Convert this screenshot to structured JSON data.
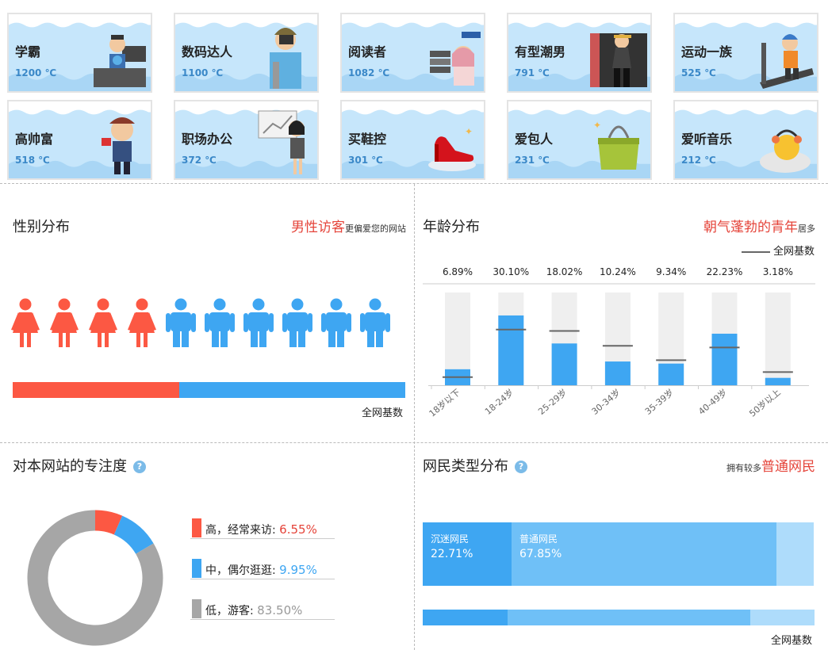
{
  "colors": {
    "female": "#fc5843",
    "male": "#3ea6f2",
    "accent": "#e5443a",
    "mid": "#3ea6f2",
    "low": "#a6a6a6"
  },
  "tags": [
    {
      "name": "学霸",
      "temp": "1200 ℃",
      "icon": "scholar-icon"
    },
    {
      "name": "数码达人",
      "temp": "1100 ℃",
      "icon": "camera-man-icon"
    },
    {
      "name": "阅读者",
      "temp": "1082 ℃",
      "icon": "reader-icon"
    },
    {
      "name": "有型潮男",
      "temp": "791 ℃",
      "icon": "trendy-man-icon"
    },
    {
      "name": "运动一族",
      "temp": "525 ℃",
      "icon": "treadmill-icon"
    },
    {
      "name": "高帅富",
      "temp": "518 ℃",
      "icon": "rich-man-icon"
    },
    {
      "name": "职场办公",
      "temp": "372 ℃",
      "icon": "office-woman-icon"
    },
    {
      "name": "买鞋控",
      "temp": "301 ℃",
      "icon": "high-heel-icon"
    },
    {
      "name": "爱包人",
      "temp": "231 ℃",
      "icon": "handbag-icon"
    },
    {
      "name": "爱听音乐",
      "temp": "212 ℃",
      "icon": "music-chick-icon"
    }
  ],
  "gender": {
    "title": "性别分布",
    "note_highlight": "男性访客",
    "note_rest": "更偏爱您的网站",
    "female_icons": 4,
    "male_icons": 6,
    "base_female_share": 0.425,
    "base_label": "全网基数"
  },
  "age": {
    "title": "年龄分布",
    "note_highlight": "朝气蓬勃的青年",
    "note_rest": "居多",
    "legend": "全网基数"
  },
  "focus": {
    "title": "对本网站的专注度",
    "help": "?",
    "items": [
      {
        "label": "高，经常来访:",
        "value": "6.55%",
        "share": 6.55,
        "color": "#fc5843"
      },
      {
        "label": "中，偶尔逛逛:",
        "value": "9.95%",
        "share": 9.95,
        "color": "#3ea6f2"
      },
      {
        "label": "低，游客:",
        "value": "83.50%",
        "share": 83.5,
        "color": "#a6a6a6"
      }
    ]
  },
  "netizen": {
    "title": "网民类型分布",
    "help": "?",
    "note_pre": "拥有较多",
    "note_highlight": "普通网民",
    "segments": [
      {
        "name": "沉迷网民",
        "value": "22.71%",
        "share": 22.71,
        "color": "#3ea6f2"
      },
      {
        "name": "普通网民",
        "value": "67.85%",
        "share": 67.85,
        "color": "#6fc0f7"
      },
      {
        "name": "",
        "value": "",
        "share": 9.44,
        "color": "#aedcfb"
      }
    ],
    "base_shares": [
      21.7,
      61.9,
      16.4
    ],
    "base_label": "全网基数"
  },
  "chart_data": [
    {
      "type": "bar",
      "title": "年龄分布",
      "categories": [
        "18岁以下",
        "18-24岁",
        "25-29岁",
        "30-34岁",
        "35-39岁",
        "40-49岁",
        "50岁以上"
      ],
      "series": [
        {
          "values": [
            6.89,
            30.1,
            18.02,
            10.24,
            9.34,
            22.23,
            3.18
          ],
          "labels": [
            "6.89%",
            "30.10%",
            "18.02%",
            "10.24%",
            "9.34%",
            "22.23%",
            "3.18%"
          ]
        },
        {
          "name": "全网基数",
          "values": [
            3.5,
            24.0,
            23.4,
            17.0,
            10.8,
            16.3,
            5.7
          ]
        }
      ],
      "ylim": [
        0,
        40
      ]
    },
    {
      "type": "pie",
      "title": "对本网站的专注度",
      "categories": [
        "高",
        "中",
        "低"
      ],
      "values": [
        6.55,
        9.95,
        83.5
      ]
    }
  ]
}
